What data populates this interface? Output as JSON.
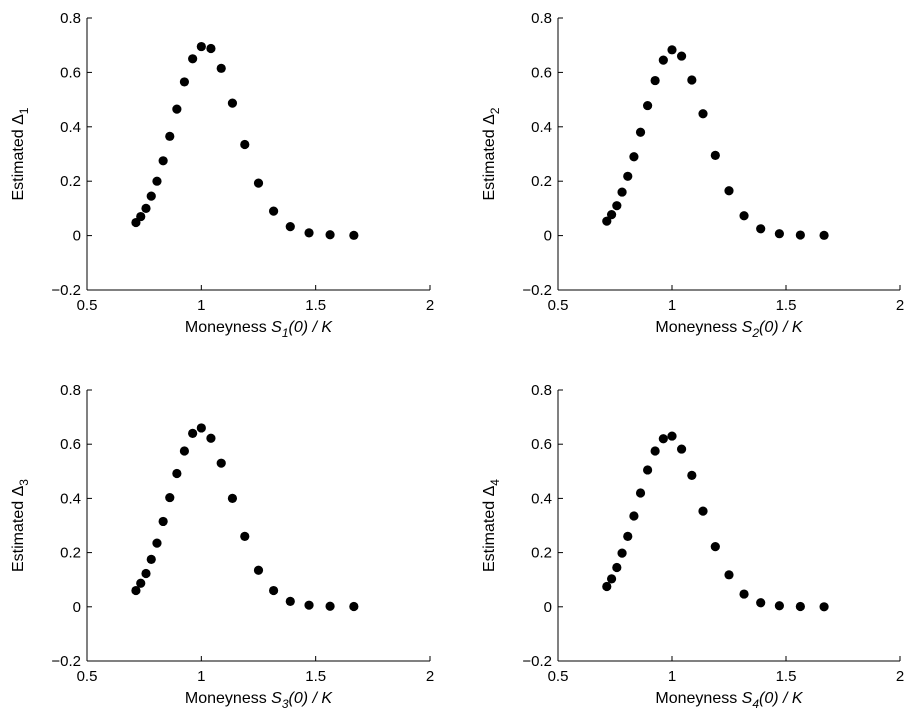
{
  "chart_data": [
    {
      "type": "scatter",
      "panel": "top-left",
      "xlabel": {
        "prefix": "Moneyness ",
        "var": "S",
        "sub": "1",
        "suffix": "(0) / K"
      },
      "ylabel": {
        "prefix": "Estimated Δ",
        "sub": "1"
      },
      "xlim": [
        0.5,
        2
      ],
      "ylim": [
        -0.2,
        0.8
      ],
      "xticks": [
        "0.5",
        "1",
        "1.5",
        "2"
      ],
      "yticks": [
        "−0.2",
        "0",
        "0.2",
        "0.4",
        "0.6",
        "0.8"
      ],
      "grid": false,
      "x": [
        0.714,
        0.735,
        0.758,
        0.781,
        0.806,
        0.833,
        0.862,
        0.893,
        0.926,
        0.962,
        1.0,
        1.042,
        1.087,
        1.136,
        1.19,
        1.25,
        1.316,
        1.389,
        1.471,
        1.563,
        1.667
      ],
      "y": [
        0.048,
        0.07,
        0.1,
        0.145,
        0.2,
        0.275,
        0.365,
        0.465,
        0.565,
        0.65,
        0.695,
        0.688,
        0.615,
        0.487,
        0.335,
        0.193,
        0.09,
        0.033,
        0.01,
        0.003,
        0.001
      ]
    },
    {
      "type": "scatter",
      "panel": "top-right",
      "xlabel": {
        "prefix": "Moneyness ",
        "var": "S",
        "sub": "2",
        "suffix": "(0) / K"
      },
      "ylabel": {
        "prefix": "Estimated Δ",
        "sub": "2"
      },
      "xlim": [
        0.5,
        2
      ],
      "ylim": [
        -0.2,
        0.8
      ],
      "xticks": [
        "0.5",
        "1",
        "1.5",
        "2"
      ],
      "yticks": [
        "−0.2",
        "0",
        "0.2",
        "0.4",
        "0.6",
        "0.8"
      ],
      "grid": false,
      "x": [
        0.714,
        0.735,
        0.758,
        0.781,
        0.806,
        0.833,
        0.862,
        0.893,
        0.926,
        0.962,
        1.0,
        1.042,
        1.087,
        1.136,
        1.19,
        1.25,
        1.316,
        1.389,
        1.471,
        1.563,
        1.667
      ],
      "y": [
        0.053,
        0.077,
        0.11,
        0.16,
        0.218,
        0.29,
        0.38,
        0.478,
        0.57,
        0.645,
        0.683,
        0.66,
        0.572,
        0.448,
        0.295,
        0.165,
        0.073,
        0.025,
        0.007,
        0.002,
        0.001
      ]
    },
    {
      "type": "scatter",
      "panel": "bottom-left",
      "xlabel": {
        "prefix": "Moneyness ",
        "var": "S",
        "sub": "3",
        "suffix": "(0) / K"
      },
      "ylabel": {
        "prefix": "Estimated Δ",
        "sub": "3"
      },
      "xlim": [
        0.5,
        2
      ],
      "ylim": [
        -0.2,
        0.8
      ],
      "xticks": [
        "0.5",
        "1",
        "1.5",
        "2"
      ],
      "yticks": [
        "−0.2",
        "0",
        "0.2",
        "0.4",
        "0.6",
        "0.8"
      ],
      "grid": false,
      "x": [
        0.714,
        0.735,
        0.758,
        0.781,
        0.806,
        0.833,
        0.862,
        0.893,
        0.926,
        0.962,
        1.0,
        1.042,
        1.087,
        1.136,
        1.19,
        1.25,
        1.316,
        1.389,
        1.471,
        1.563,
        1.667
      ],
      "y": [
        0.06,
        0.087,
        0.123,
        0.175,
        0.235,
        0.315,
        0.403,
        0.492,
        0.575,
        0.64,
        0.66,
        0.622,
        0.53,
        0.4,
        0.26,
        0.135,
        0.06,
        0.02,
        0.006,
        0.002,
        0.001
      ]
    },
    {
      "type": "scatter",
      "panel": "bottom-right",
      "xlabel": {
        "prefix": "Moneyness ",
        "var": "S",
        "sub": "4",
        "suffix": "(0) / K"
      },
      "ylabel": {
        "prefix": "Estimated Δ",
        "sub": "4"
      },
      "xlim": [
        0.5,
        2
      ],
      "ylim": [
        -0.2,
        0.8
      ],
      "xticks": [
        "0.5",
        "1",
        "1.5",
        "2"
      ],
      "yticks": [
        "−0.2",
        "0",
        "0.2",
        "0.4",
        "0.6",
        "0.8"
      ],
      "grid": false,
      "x": [
        0.714,
        0.735,
        0.758,
        0.781,
        0.806,
        0.833,
        0.862,
        0.893,
        0.926,
        0.962,
        1.0,
        1.042,
        1.087,
        1.136,
        1.19,
        1.25,
        1.316,
        1.389,
        1.471,
        1.563,
        1.667
      ],
      "y": [
        0.075,
        0.103,
        0.145,
        0.198,
        0.26,
        0.335,
        0.42,
        0.505,
        0.575,
        0.62,
        0.63,
        0.582,
        0.485,
        0.353,
        0.222,
        0.118,
        0.047,
        0.015,
        0.004,
        0.001,
        0.0
      ]
    }
  ],
  "style": {
    "marker_color": "#000000",
    "axis_color": "#000000",
    "background": "#ffffff"
  }
}
